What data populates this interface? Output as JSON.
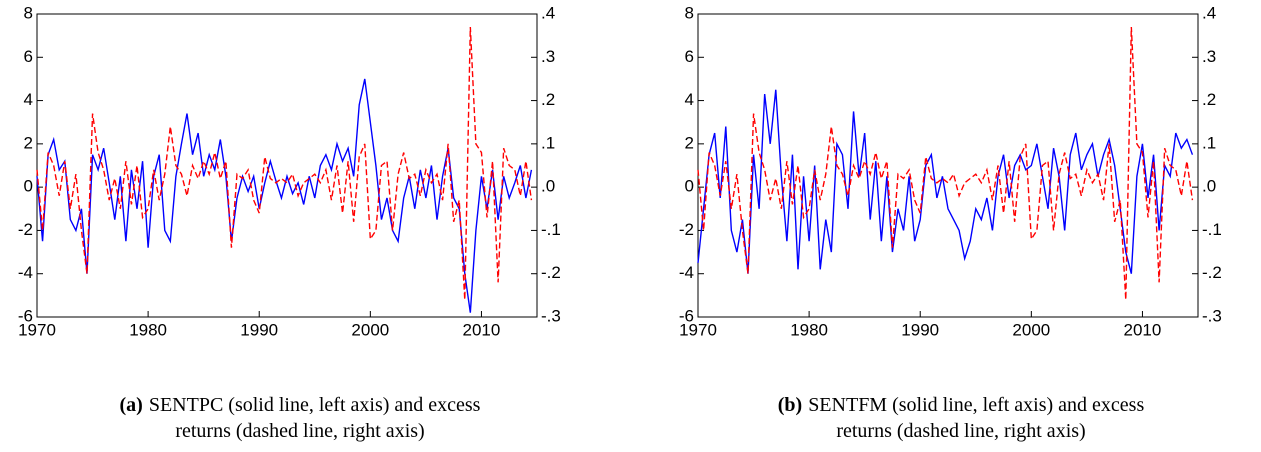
{
  "chart_data": [
    {
      "type": "line",
      "caption_label": "(a)",
      "caption": "SENTPC (solid line, left axis) and excess returns (dashed line, right axis)",
      "x": [
        1970,
        1970.5,
        1971,
        1971.5,
        1972,
        1972.5,
        1973,
        1973.5,
        1974,
        1974.5,
        1975,
        1975.5,
        1976,
        1976.5,
        1977,
        1977.5,
        1978,
        1978.5,
        1979,
        1979.5,
        1980,
        1980.5,
        1981,
        1981.5,
        1982,
        1982.5,
        1983,
        1983.5,
        1984,
        1984.5,
        1985,
        1985.5,
        1986,
        1986.5,
        1987,
        1987.5,
        1988,
        1988.5,
        1989,
        1989.5,
        1990,
        1990.5,
        1991,
        1991.5,
        1992,
        1992.5,
        1993,
        1993.5,
        1994,
        1994.5,
        1995,
        1995.5,
        1996,
        1996.5,
        1997,
        1997.5,
        1998,
        1998.5,
        1999,
        1999.5,
        2000,
        2000.5,
        2001,
        2001.5,
        2002,
        2002.5,
        2003,
        2003.5,
        2004,
        2004.5,
        2005,
        2005.5,
        2006,
        2006.5,
        2007,
        2007.5,
        2008,
        2008.5,
        2009,
        2009.5,
        2010,
        2010.5,
        2011,
        2011.5,
        2012,
        2012.5,
        2013,
        2013.5,
        2014,
        2014.5
      ],
      "xlim": [
        1970,
        2015
      ],
      "xticks": [
        1970,
        1980,
        1990,
        2000,
        2010
      ],
      "ylim": [
        -6,
        8
      ],
      "yticks": [
        -6,
        -4,
        -2,
        0,
        2,
        4,
        6,
        8
      ],
      "y2lim": [
        -0.3,
        0.4
      ],
      "y2ticks": [
        {
          "value": -0.3,
          "label": "-.3"
        },
        {
          "value": -0.2,
          "label": "-.2"
        },
        {
          "value": -0.1,
          "label": "-.1"
        },
        {
          "value": 0,
          "label": ".0"
        },
        {
          "value": 0.1,
          "label": ".1"
        },
        {
          "value": 0.2,
          "label": ".2"
        },
        {
          "value": 0.3,
          "label": ".3"
        },
        {
          "value": 0.4,
          "label": ".4"
        }
      ],
      "series": [
        {
          "color": "#0000ff",
          "style": "solid",
          "values": [
            0.5,
            -2.5,
            1.5,
            2.2,
            0.8,
            1.2,
            -1.5,
            -2.0,
            -1.0,
            -4.0,
            1.5,
            0.8,
            1.8,
            0.2,
            -1.5,
            0.5,
            -2.5,
            0.8,
            -1.0,
            1.2,
            -2.8,
            0.5,
            1.5,
            -2.0,
            -2.5,
            0.5,
            2.0,
            3.4,
            1.5,
            2.5,
            0.5,
            1.5,
            0.8,
            2.2,
            0.5,
            -2.5,
            -0.5,
            0.5,
            -0.2,
            0.5,
            -1.0,
            0.2,
            1.2,
            0.3,
            -0.5,
            0.5,
            -0.3,
            0.2,
            -0.8,
            0.5,
            -0.5,
            1.0,
            1.5,
            0.8,
            2.0,
            1.2,
            1.8,
            0.5,
            3.8,
            5.0,
            3.0,
            1.0,
            -1.5,
            -0.5,
            -2.0,
            -2.5,
            -0.5,
            0.5,
            -1.0,
            0.8,
            -0.5,
            1.0,
            -1.5,
            0.5,
            1.8,
            -0.5,
            -1.0,
            -4.0,
            -5.8,
            -2.0,
            0.5,
            -1.0,
            0.8,
            -1.5,
            0.5,
            -0.5,
            0.2,
            1.0,
            -0.5,
            0.8
          ]
        },
        {
          "color": "#ff0000",
          "style": "dashed",
          "axis": "y2",
          "values": [
            0.04,
            -0.1,
            0.08,
            0.05,
            -0.02,
            0.06,
            -0.05,
            0.03,
            -0.1,
            -0.2,
            0.17,
            0.08,
            0.04,
            -0.03,
            0.02,
            -0.05,
            0.06,
            -0.04,
            0.05,
            -0.07,
            -0.05,
            0.04,
            -0.03,
            0.03,
            0.14,
            0.05,
            0.03,
            -0.02,
            0.05,
            0.02,
            0.06,
            0.03,
            0.08,
            0.02,
            0.06,
            -0.14,
            0.03,
            0.02,
            0.04,
            -0.03,
            -0.06,
            0.07,
            0.02,
            0.01,
            0.02,
            0.01,
            0.03,
            -0.02,
            0.01,
            0.02,
            0.03,
            0.01,
            0.04,
            -0.03,
            0.05,
            -0.06,
            0.06,
            -0.08,
            0.07,
            0.1,
            -0.12,
            -0.1,
            0.05,
            0.06,
            -0.1,
            0.03,
            0.08,
            0.02,
            0.03,
            -0.02,
            0.04,
            0.01,
            0.03,
            -0.03,
            0.1,
            -0.08,
            -0.03,
            -0.26,
            0.37,
            0.1,
            0.08,
            -0.07,
            0.06,
            -0.22,
            0.09,
            0.05,
            0.04,
            -0.02,
            0.06,
            -0.03
          ]
        }
      ]
    },
    {
      "type": "line",
      "caption_label": "(b)",
      "caption": "SENTFM (solid line, left axis) and excess returns (dashed line, right axis)",
      "x": [
        1970,
        1970.5,
        1971,
        1971.5,
        1972,
        1972.5,
        1973,
        1973.5,
        1974,
        1974.5,
        1975,
        1975.5,
        1976,
        1976.5,
        1977,
        1977.5,
        1978,
        1978.5,
        1979,
        1979.5,
        1980,
        1980.5,
        1981,
        1981.5,
        1982,
        1982.5,
        1983,
        1983.5,
        1984,
        1984.5,
        1985,
        1985.5,
        1986,
        1986.5,
        1987,
        1987.5,
        1988,
        1988.5,
        1989,
        1989.5,
        1990,
        1990.5,
        1991,
        1991.5,
        1992,
        1992.5,
        1993,
        1993.5,
        1994,
        1994.5,
        1995,
        1995.5,
        1996,
        1996.5,
        1997,
        1997.5,
        1998,
        1998.5,
        1999,
        1999.5,
        2000,
        2000.5,
        2001,
        2001.5,
        2002,
        2002.5,
        2003,
        2003.5,
        2004,
        2004.5,
        2005,
        2005.5,
        2006,
        2006.5,
        2007,
        2007.5,
        2008,
        2008.5,
        2009,
        2009.5,
        2010,
        2010.5,
        2011,
        2011.5,
        2012,
        2012.5,
        2013,
        2013.5,
        2014,
        2014.5
      ],
      "xlim": [
        1970,
        2015
      ],
      "xticks": [
        1970,
        1980,
        1990,
        2000,
        2010
      ],
      "ylim": [
        -6,
        8
      ],
      "yticks": [
        -6,
        -4,
        -2,
        0,
        2,
        4,
        6,
        8
      ],
      "y2lim": [
        -0.3,
        0.4
      ],
      "y2ticks": [
        {
          "value": -0.3,
          "label": "-.3"
        },
        {
          "value": -0.2,
          "label": "-.2"
        },
        {
          "value": -0.1,
          "label": "-.1"
        },
        {
          "value": 0,
          "label": ".0"
        },
        {
          "value": 0.1,
          "label": ".1"
        },
        {
          "value": 0.2,
          "label": ".2"
        },
        {
          "value": 0.3,
          "label": ".3"
        },
        {
          "value": 0.4,
          "label": ".4"
        }
      ],
      "series": [
        {
          "color": "#0000ff",
          "style": "solid",
          "values": [
            -3.5,
            -1.0,
            1.5,
            2.5,
            -0.5,
            2.8,
            -2.0,
            -3.0,
            -1.5,
            -4.0,
            1.5,
            -1.0,
            4.3,
            2.0,
            4.5,
            0.5,
            -2.5,
            1.5,
            -3.8,
            0.5,
            -2.5,
            1.0,
            -3.8,
            -1.5,
            -3.0,
            2.0,
            1.5,
            -1.0,
            3.5,
            0.5,
            2.5,
            -1.5,
            1.2,
            -2.5,
            0.5,
            -3.0,
            -1.0,
            -2.0,
            0.5,
            -2.5,
            -1.5,
            1.0,
            1.5,
            -0.5,
            0.5,
            -1.0,
            -1.5,
            -2.0,
            -3.3,
            -2.5,
            -1.0,
            -1.5,
            -0.5,
            -2.0,
            0.5,
            1.5,
            -0.5,
            1.0,
            1.5,
            0.8,
            1.0,
            2.0,
            0.5,
            -1.0,
            1.8,
            0.5,
            -2.0,
            1.5,
            2.5,
            0.8,
            1.5,
            2.0,
            0.5,
            1.5,
            2.2,
            1.0,
            -1.0,
            -3.0,
            -4.0,
            0.5,
            2.0,
            -0.5,
            1.5,
            -2.0,
            1.0,
            0.5,
            2.5,
            1.8,
            2.2,
            1.5
          ]
        },
        {
          "color": "#ff0000",
          "style": "dashed",
          "axis": "y2",
          "values": [
            0.04,
            -0.1,
            0.08,
            0.05,
            -0.02,
            0.06,
            -0.05,
            0.03,
            -0.1,
            -0.2,
            0.17,
            0.08,
            0.04,
            -0.03,
            0.02,
            -0.05,
            0.06,
            -0.04,
            0.05,
            -0.07,
            -0.05,
            0.04,
            -0.03,
            0.03,
            0.14,
            0.05,
            0.03,
            -0.02,
            0.05,
            0.02,
            0.06,
            0.03,
            0.08,
            0.02,
            0.06,
            -0.14,
            0.03,
            0.02,
            0.04,
            -0.03,
            -0.06,
            0.07,
            0.02,
            0.01,
            0.02,
            0.01,
            0.03,
            -0.02,
            0.01,
            0.02,
            0.03,
            0.01,
            0.04,
            -0.03,
            0.05,
            -0.06,
            0.06,
            -0.08,
            0.07,
            0.1,
            -0.12,
            -0.1,
            0.05,
            0.06,
            -0.1,
            0.03,
            0.08,
            0.02,
            0.03,
            -0.02,
            0.04,
            0.01,
            0.03,
            -0.03,
            0.1,
            -0.08,
            -0.03,
            -0.26,
            0.37,
            0.1,
            0.08,
            -0.07,
            0.06,
            -0.22,
            0.09,
            0.05,
            0.04,
            -0.02,
            0.06,
            -0.03
          ]
        }
      ]
    }
  ]
}
